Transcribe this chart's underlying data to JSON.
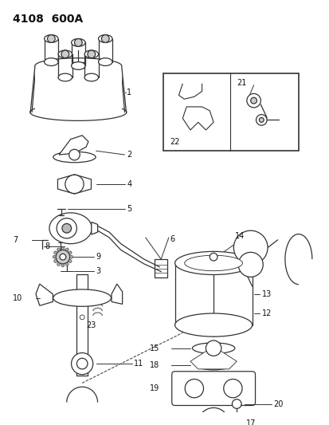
{
  "title": "4108  600A",
  "background_color": "#ffffff",
  "line_color": "#333333",
  "label_color": "#111111",
  "figsize": [
    4.14,
    5.33
  ],
  "dpi": 100
}
